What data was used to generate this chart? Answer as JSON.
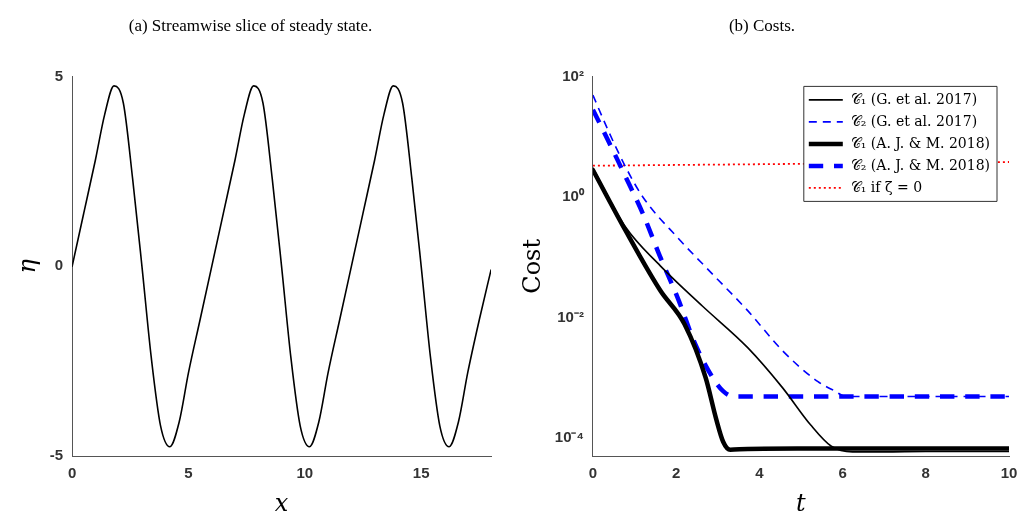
{
  "chart_data": [
    {
      "type": "line",
      "title": "(a) Streamwise slice of steady state.",
      "xlabel": "x",
      "ylabel": "η",
      "xlim": [
        0,
        18
      ],
      "xticks": [
        0,
        5,
        10,
        15
      ],
      "ylim": [
        -5,
        5
      ],
      "yticks": [
        -5,
        0,
        5
      ],
      "grid": false,
      "legend": false,
      "series": [
        {
          "color": "#000000",
          "line_style": "solid",
          "x": [
            0,
            0.5,
            1,
            1.4,
            1.8,
            2.2,
            2.6,
            3,
            3.4,
            3.8,
            4.2,
            4.6,
            5,
            5.5,
            6,
            6.5,
            7,
            7.4,
            7.8,
            8.2,
            8.6,
            9,
            9.4,
            9.8,
            10.2,
            10.6,
            11,
            11.5,
            12,
            12.5,
            13,
            13.4,
            13.8,
            14.2,
            14.6,
            15,
            15.4,
            15.8,
            16.2,
            16.6,
            17,
            17.5,
            18
          ],
          "values": [
            0,
            1.4,
            2.8,
            4.0,
            4.75,
            4.3,
            2.3,
            0,
            -2.4,
            -4.2,
            -4.75,
            -4.1,
            -2.8,
            -1.4,
            0,
            1.4,
            2.8,
            4.0,
            4.75,
            4.3,
            2.3,
            0,
            -2.4,
            -4.2,
            -4.75,
            -4.1,
            -2.8,
            -1.4,
            0,
            1.4,
            2.8,
            4.0,
            4.75,
            4.3,
            2.3,
            0,
            -2.4,
            -4.2,
            -4.75,
            -4.1,
            -2.8,
            -1.4,
            -0.1
          ]
        }
      ]
    },
    {
      "type": "line",
      "title": "(b) Costs.",
      "xlabel": "t",
      "ylabel": "Cost",
      "log": "y",
      "xlim": [
        0,
        10
      ],
      "xticks": [
        0,
        2,
        4,
        6,
        8,
        10
      ],
      "ylim": [
        5e-05,
        100
      ],
      "yticks": [
        {
          "value": 0.0001,
          "label": "10⁻⁴"
        },
        {
          "value": 0.01,
          "label": "10⁻²"
        },
        {
          "value": 1,
          "label": "10⁰"
        },
        {
          "value": 100,
          "label": "10²"
        }
      ],
      "grid": false,
      "legend": "top right",
      "series": [
        {
          "name": "𝒞₁ (G. et al. 2017)",
          "color": "#000000",
          "line_style": "solid",
          "x": [
            0,
            0.78,
            1.62,
            2.63,
            3.72,
            4.56,
            5.23,
            5.73,
            6.24,
            7,
            8,
            9,
            10
          ],
          "values": [
            3.0,
            0.32,
            0.072,
            0.0155,
            0.00316,
            0.00068,
            0.000166,
            7.3e-05,
            5.9e-05,
            5.9e-05,
            6e-05,
            6e-05,
            6e-05
          ]
        },
        {
          "name": "𝒞₂ (G. et al. 2017)",
          "color": "#0000ff",
          "line_style": "dashed",
          "x": [
            0,
            0.36,
            0.78,
            1.2,
            2.04,
            2.88,
            3.72,
            4.56,
            5.4,
            5.82,
            6.07,
            8,
            10
          ],
          "values": [
            49,
            13,
            3.2,
            1.0,
            0.21,
            0.052,
            0.013,
            0.0028,
            0.00087,
            0.0006,
            0.00049,
            0.00049,
            0.00049
          ]
        },
        {
          "name": "𝒞₁ (A. J. & M. 2018)",
          "color": "#000000",
          "line_style": "solid",
          "x": [
            0,
            0.78,
            1.62,
            2.2,
            2.71,
            2.96,
            3.13,
            3.3,
            3.72,
            6,
            8,
            10
          ],
          "values": [
            2.8,
            0.28,
            0.028,
            0.0078,
            0.001,
            0.00021,
            8.7e-05,
            6.4e-05,
            6.6e-05,
            6.7e-05,
            6.7e-05,
            6.7e-05
          ]
        },
        {
          "name": "𝒞₂ (A. J. & M. 2018)",
          "color": "#0000ff",
          "line_style": "dashed",
          "x": [
            0,
            0.36,
            0.78,
            1.2,
            1.62,
            2.04,
            2.46,
            2.88,
            3.13,
            3.38,
            6,
            10
          ],
          "values": [
            28,
            8.8,
            2.2,
            0.53,
            0.1,
            0.021,
            0.0036,
            0.001,
            0.0006,
            0.00049,
            0.00049,
            0.00049
          ]
        },
        {
          "name": "𝒞₁ if ζ = 0",
          "color": "#ff0000",
          "line_style": "dotted",
          "x": [
            0,
            10
          ],
          "values": [
            3.3,
            3.8
          ]
        }
      ]
    }
  ]
}
